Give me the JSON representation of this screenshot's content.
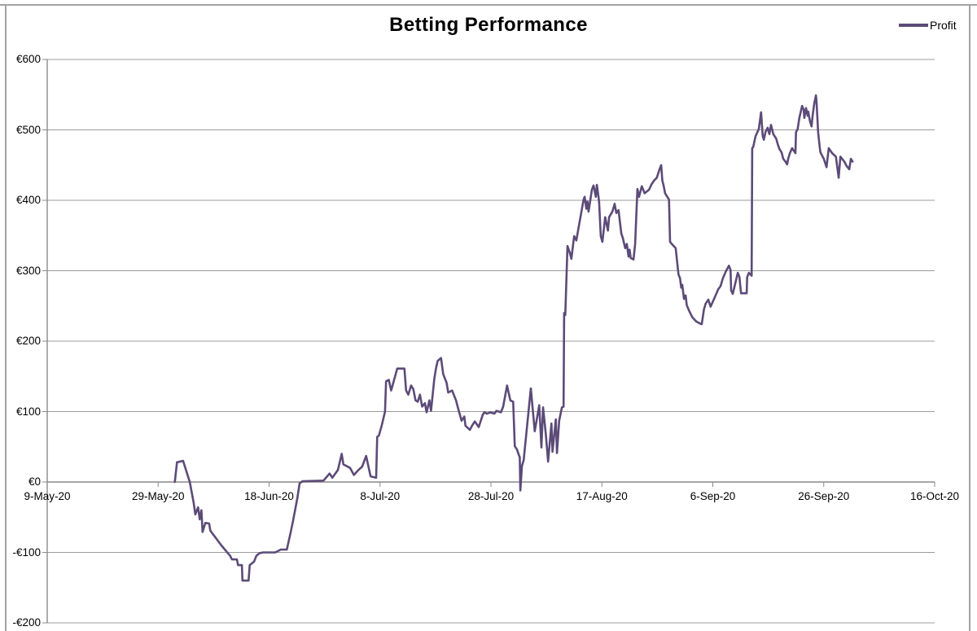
{
  "styles": {
    "background": "#ffffff",
    "border_color": "#a3a3a3",
    "grid_color": "#9c9c9c",
    "axis_color": "#8a8a8a",
    "text_color": "#000000",
    "line_color": "#5c4b78"
  },
  "chart_data": {
    "type": "line",
    "title": "Betting Performance",
    "legend_position": "top-right",
    "grid": true,
    "x_axis": {
      "unit": "days since 9-May-20",
      "range_days": [
        0,
        160
      ],
      "tick_interval_days": 20,
      "ticks": [
        {
          "day": 0,
          "label": "9-May-20"
        },
        {
          "day": 20,
          "label": "29-May-20"
        },
        {
          "day": 40,
          "label": "18-Jun-20"
        },
        {
          "day": 60,
          "label": "8-Jul-20"
        },
        {
          "day": 80,
          "label": "28-Jul-20"
        },
        {
          "day": 100,
          "label": "17-Aug-20"
        },
        {
          "day": 120,
          "label": "6-Sep-20"
        },
        {
          "day": 140,
          "label": "26-Sep-20"
        },
        {
          "day": 160,
          "label": "16-Oct-20"
        }
      ]
    },
    "y_axis": {
      "range": [
        -200,
        600
      ],
      "tick_step": 100,
      "ticks": [
        {
          "value": 600,
          "label": "€600"
        },
        {
          "value": 500,
          "label": "€500"
        },
        {
          "value": 400,
          "label": "€400"
        },
        {
          "value": 300,
          "label": "€300"
        },
        {
          "value": 200,
          "label": "€200"
        },
        {
          "value": 100,
          "label": "€100"
        },
        {
          "value": 0,
          "label": "€0"
        },
        {
          "value": -100,
          "label": "-€100"
        },
        {
          "value": -200,
          "label": "-€200"
        }
      ]
    },
    "series": [
      {
        "name": "Profit",
        "color": "#5c4b78",
        "points": [
          [
            23.0,
            0
          ],
          [
            23.4,
            28
          ],
          [
            24.5,
            30
          ],
          [
            25.7,
            0
          ],
          [
            26.4,
            -29
          ],
          [
            26.7,
            -46
          ],
          [
            27.2,
            -36
          ],
          [
            27.5,
            -53
          ],
          [
            27.8,
            -40
          ],
          [
            28.0,
            -71
          ],
          [
            28.5,
            -58
          ],
          [
            29.2,
            -59
          ],
          [
            29.4,
            -69
          ],
          [
            31.4,
            -90
          ],
          [
            33.0,
            -105
          ],
          [
            33.3,
            -110
          ],
          [
            34.2,
            -110
          ],
          [
            34.4,
            -118
          ],
          [
            35.1,
            -118
          ],
          [
            35.2,
            -140
          ],
          [
            36.3,
            -140
          ],
          [
            36.5,
            -118
          ],
          [
            37.3,
            -113
          ],
          [
            37.7,
            -105
          ],
          [
            38.3,
            -101
          ],
          [
            38.9,
            -100
          ],
          [
            41.1,
            -100
          ],
          [
            42.1,
            -96
          ],
          [
            43.2,
            -96
          ],
          [
            43.9,
            -71
          ],
          [
            44.3,
            -56
          ],
          [
            45.1,
            -23
          ],
          [
            45.5,
            -2
          ],
          [
            46.0,
            1
          ],
          [
            49.8,
            2
          ],
          [
            50.9,
            12
          ],
          [
            51.4,
            6
          ],
          [
            52.4,
            17
          ],
          [
            53.1,
            40
          ],
          [
            53.4,
            25
          ],
          [
            54.6,
            20
          ],
          [
            55.3,
            10
          ],
          [
            56.1,
            17
          ],
          [
            56.8,
            22
          ],
          [
            57.5,
            37
          ],
          [
            58.3,
            8
          ],
          [
            59.3,
            6
          ],
          [
            59.5,
            64
          ],
          [
            59.8,
            66
          ],
          [
            60.3,
            80
          ],
          [
            60.9,
            100
          ],
          [
            61.1,
            143
          ],
          [
            61.6,
            145
          ],
          [
            62.0,
            130
          ],
          [
            62.4,
            141
          ],
          [
            63.1,
            161
          ],
          [
            64.4,
            161
          ],
          [
            64.7,
            130
          ],
          [
            65.1,
            124
          ],
          [
            65.6,
            137
          ],
          [
            66.0,
            132
          ],
          [
            66.4,
            116
          ],
          [
            66.8,
            114
          ],
          [
            67.2,
            124
          ],
          [
            67.6,
            107
          ],
          [
            68.1,
            112
          ],
          [
            68.4,
            99
          ],
          [
            68.9,
            116
          ],
          [
            69.2,
            101
          ],
          [
            69.8,
            147
          ],
          [
            70.1,
            162
          ],
          [
            70.4,
            172
          ],
          [
            71.0,
            176
          ],
          [
            71.4,
            153
          ],
          [
            72.0,
            141
          ],
          [
            72.3,
            127
          ],
          [
            73.0,
            130
          ],
          [
            73.7,
            116
          ],
          [
            74.1,
            104
          ],
          [
            74.7,
            87
          ],
          [
            75.2,
            93
          ],
          [
            75.4,
            80
          ],
          [
            76.2,
            74
          ],
          [
            76.6,
            80
          ],
          [
            77.1,
            86
          ],
          [
            77.8,
            78
          ],
          [
            78.5,
            95
          ],
          [
            78.8,
            99
          ],
          [
            79.3,
            97
          ],
          [
            79.9,
            99
          ],
          [
            80.6,
            97
          ],
          [
            81.0,
            101
          ],
          [
            81.8,
            99
          ],
          [
            82.2,
            107
          ],
          [
            82.9,
            137
          ],
          [
            83.5,
            116
          ],
          [
            84.0,
            114
          ],
          [
            84.3,
            51
          ],
          [
            84.7,
            46
          ],
          [
            85.0,
            39
          ],
          [
            85.2,
            35
          ],
          [
            85.3,
            -12
          ],
          [
            85.6,
            23
          ],
          [
            85.9,
            31
          ],
          [
            87.2,
            133
          ],
          [
            87.9,
            72
          ],
          [
            88.7,
            109
          ],
          [
            89.1,
            49
          ],
          [
            89.4,
            106
          ],
          [
            89.9,
            68
          ],
          [
            90.3,
            29
          ],
          [
            90.9,
            83
          ],
          [
            91.1,
            43
          ],
          [
            91.7,
            89
          ],
          [
            91.9,
            41
          ],
          [
            92.3,
            87
          ],
          [
            92.8,
            106
          ],
          [
            93.1,
            107
          ],
          [
            93.2,
            240
          ],
          [
            93.4,
            237
          ],
          [
            93.8,
            335
          ],
          [
            94.2,
            326
          ],
          [
            94.5,
            317
          ],
          [
            95.0,
            349
          ],
          [
            95.4,
            343
          ],
          [
            95.7,
            357
          ],
          [
            96.7,
            401
          ],
          [
            96.9,
            405
          ],
          [
            97.2,
            388
          ],
          [
            97.4,
            398
          ],
          [
            97.6,
            384
          ],
          [
            98.2,
            415
          ],
          [
            98.5,
            421
          ],
          [
            98.9,
            405
          ],
          [
            99.1,
            422
          ],
          [
            99.5,
            399
          ],
          [
            99.8,
            349
          ],
          [
            100.1,
            341
          ],
          [
            100.6,
            376
          ],
          [
            101.1,
            357
          ],
          [
            101.3,
            376
          ],
          [
            101.9,
            384
          ],
          [
            102.3,
            395
          ],
          [
            102.6,
            382
          ],
          [
            103.0,
            386
          ],
          [
            103.5,
            353
          ],
          [
            103.8,
            346
          ],
          [
            104.2,
            332
          ],
          [
            104.5,
            338
          ],
          [
            104.8,
            320
          ],
          [
            105.0,
            330
          ],
          [
            105.2,
            318
          ],
          [
            105.7,
            316
          ],
          [
            106.0,
            338
          ],
          [
            106.4,
            416
          ],
          [
            106.7,
            405
          ],
          [
            107.2,
            420
          ],
          [
            107.7,
            410
          ],
          [
            108.5,
            415
          ],
          [
            108.9,
            422
          ],
          [
            109.4,
            428
          ],
          [
            109.9,
            432
          ],
          [
            110.4,
            444
          ],
          [
            110.7,
            450
          ],
          [
            110.9,
            428
          ],
          [
            111.1,
            422
          ],
          [
            111.4,
            410
          ],
          [
            112.1,
            401
          ],
          [
            112.3,
            341
          ],
          [
            112.6,
            338
          ],
          [
            113.3,
            332
          ],
          [
            113.8,
            295
          ],
          [
            114.1,
            289
          ],
          [
            114.3,
            276
          ],
          [
            114.5,
            280
          ],
          [
            114.8,
            260
          ],
          [
            115.1,
            265
          ],
          [
            115.3,
            251
          ],
          [
            115.8,
            242
          ],
          [
            116.3,
            234
          ],
          [
            117.0,
            228
          ],
          [
            117.7,
            225
          ],
          [
            118.0,
            224
          ],
          [
            118.2,
            234
          ],
          [
            118.4,
            245
          ],
          [
            118.7,
            253
          ],
          [
            119.2,
            259
          ],
          [
            119.6,
            249
          ],
          [
            120.4,
            263
          ],
          [
            121.0,
            274
          ],
          [
            121.4,
            278
          ],
          [
            121.8,
            289
          ],
          [
            122.4,
            300
          ],
          [
            122.9,
            307
          ],
          [
            123.2,
            301
          ],
          [
            123.3,
            272
          ],
          [
            123.6,
            267
          ],
          [
            124.5,
            297
          ],
          [
            124.8,
            291
          ],
          [
            125.1,
            268
          ],
          [
            126.1,
            268
          ],
          [
            126.2,
            291
          ],
          [
            126.5,
            297
          ],
          [
            127.0,
            293
          ],
          [
            127.1,
            474
          ],
          [
            127.3,
            476
          ],
          [
            127.7,
            491
          ],
          [
            128.3,
            501
          ],
          [
            128.7,
            525
          ],
          [
            129.0,
            491
          ],
          [
            129.2,
            486
          ],
          [
            129.5,
            497
          ],
          [
            129.9,
            503
          ],
          [
            130.2,
            494
          ],
          [
            130.5,
            507
          ],
          [
            130.9,
            494
          ],
          [
            131.4,
            488
          ],
          [
            131.7,
            480
          ],
          [
            132.0,
            473
          ],
          [
            132.4,
            468
          ],
          [
            132.7,
            459
          ],
          [
            133.1,
            455
          ],
          [
            133.4,
            451
          ],
          [
            133.6,
            459
          ],
          [
            133.9,
            467
          ],
          [
            134.3,
            474
          ],
          [
            134.9,
            467
          ],
          [
            135.0,
            497
          ],
          [
            135.3,
            501
          ],
          [
            135.6,
            517
          ],
          [
            136.1,
            534
          ],
          [
            136.4,
            528
          ],
          [
            136.5,
            517
          ],
          [
            136.8,
            531
          ],
          [
            137.1,
            520
          ],
          [
            137.2,
            526
          ],
          [
            137.5,
            513
          ],
          [
            137.8,
            505
          ],
          [
            138.0,
            520
          ],
          [
            138.3,
            538
          ],
          [
            138.6,
            549
          ],
          [
            138.7,
            540
          ],
          [
            139.0,
            496
          ],
          [
            139.3,
            474
          ],
          [
            139.4,
            468
          ],
          [
            140.0,
            459
          ],
          [
            140.5,
            447
          ],
          [
            140.9,
            474
          ],
          [
            141.5,
            467
          ],
          [
            142.2,
            462
          ],
          [
            142.7,
            432
          ],
          [
            143.0,
            462
          ],
          [
            143.7,
            455
          ],
          [
            144.1,
            449
          ],
          [
            144.6,
            444
          ],
          [
            144.9,
            459
          ],
          [
            145.2,
            455
          ]
        ]
      }
    ]
  }
}
